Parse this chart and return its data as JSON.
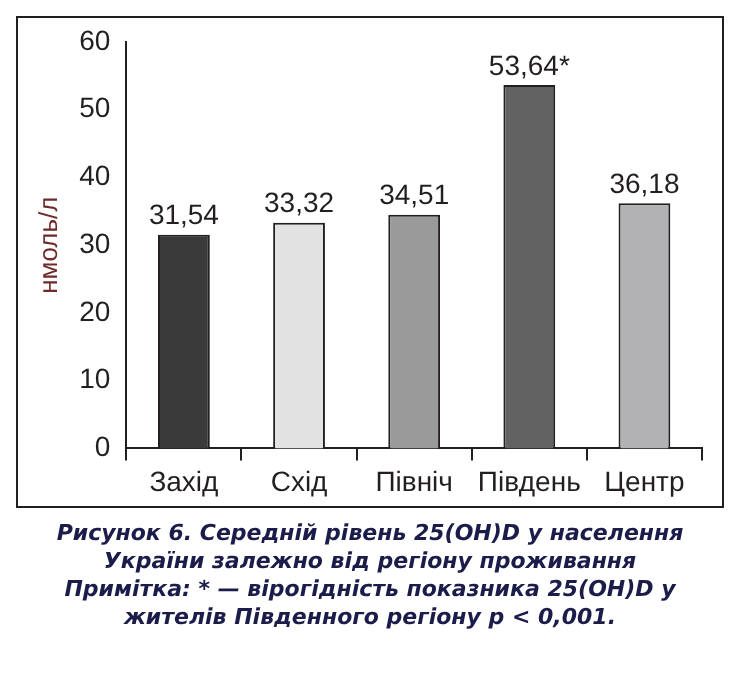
{
  "chart_data": {
    "type": "bar",
    "title": "Рисунок 6. Середній рівень 25(OH)D у населення України залежно від регіону проживання",
    "annotations": [
      "Примітка: * — вірогідність показника 25(OH)D у жителів Південного регіону p < 0,001."
    ],
    "ylabel": "нмоль/л",
    "categories": [
      "Захід",
      "Схід",
      "Північ",
      "Південь",
      "Центр"
    ],
    "values": [
      31.54,
      33.32,
      34.51,
      53.64,
      36.18
    ],
    "value_labels": [
      "31,54",
      "33,32",
      "34,51",
      "53,64*",
      "36,18"
    ],
    "colors": [
      "#3a3a3a",
      "#e2e2e2",
      "#9a9a9a",
      "#626262",
      "#b2b2b4"
    ],
    "ylim": [
      0,
      60
    ],
    "yticks": [
      0,
      10,
      20,
      30,
      40,
      50,
      60
    ],
    "grid": false,
    "legend": false
  }
}
